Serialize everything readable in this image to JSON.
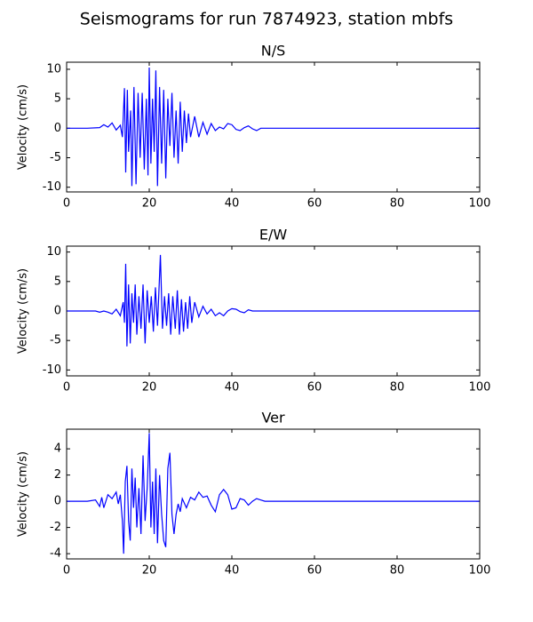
{
  "title": "Seismograms for run 7874923, station mbfs",
  "chart_data": [
    {
      "type": "line",
      "title": "N/S",
      "ylabel": "Velocity (cm/s)",
      "color": "#0000ff",
      "xlim": [
        0,
        100
      ],
      "xticks": [
        0,
        20,
        40,
        60,
        80,
        100
      ],
      "ylim": [
        -10.8,
        11.2
      ],
      "yticks": [
        -10,
        -5,
        0,
        5,
        10
      ],
      "x": [
        0,
        5,
        8,
        9,
        10,
        11,
        12,
        13,
        13.5,
        14,
        14.3,
        14.7,
        15,
        15.5,
        15.8,
        16.3,
        16.8,
        17.3,
        17.8,
        18.3,
        18.8,
        19.3,
        19.7,
        20,
        20.4,
        20.8,
        21.2,
        21.6,
        22,
        22.5,
        23,
        23.5,
        24,
        24.5,
        25,
        25.5,
        26,
        26.5,
        27,
        27.5,
        28,
        28.5,
        29,
        29.5,
        30,
        31,
        32,
        33,
        34,
        35,
        36,
        37,
        38,
        39,
        40,
        41,
        42,
        43,
        44,
        45,
        46,
        47,
        50,
        60,
        100
      ],
      "values": [
        0,
        0,
        0.1,
        0.6,
        0.2,
        0.9,
        -0.3,
        0.5,
        -1.5,
        6.8,
        -7.5,
        6.5,
        -4,
        3,
        -9.8,
        7,
        -9.5,
        6,
        -5,
        6,
        -7,
        5,
        -8,
        10.3,
        -6,
        5,
        -4,
        9.8,
        -9.8,
        7,
        -6,
        6.5,
        -8.5,
        5,
        -3,
        6,
        -5,
        3,
        -6,
        4.5,
        -4,
        3,
        -2.5,
        2.5,
        -1.5,
        2,
        -1.5,
        1,
        -1,
        0.8,
        -0.4,
        0.2,
        -0.1,
        0.8,
        0.6,
        -0.2,
        -0.4,
        0.1,
        0.4,
        -0.1,
        -0.4,
        0,
        0,
        0,
        0
      ]
    },
    {
      "type": "line",
      "title": "E/W",
      "ylabel": "Velocity (cm/s)",
      "color": "#0000ff",
      "xlim": [
        0,
        100
      ],
      "xticks": [
        0,
        20,
        40,
        60,
        80,
        100
      ],
      "ylim": [
        -11,
        11
      ],
      "yticks": [
        -10,
        -5,
        0,
        5,
        10
      ],
      "x": [
        0,
        7,
        8,
        9,
        10,
        11,
        12,
        13,
        13.7,
        14,
        14.3,
        14.6,
        15,
        15.4,
        15.8,
        16.2,
        16.6,
        17,
        17.5,
        18,
        18.5,
        19,
        19.5,
        20,
        20.5,
        21,
        21.5,
        22,
        22.7,
        23.2,
        23.7,
        24.2,
        24.7,
        25.2,
        25.7,
        26.3,
        26.8,
        27.3,
        27.8,
        28.3,
        28.8,
        29.3,
        29.8,
        30.3,
        31,
        32,
        33,
        34,
        35,
        36,
        37,
        38,
        39,
        40,
        41,
        42,
        43,
        44,
        45,
        47,
        100
      ],
      "values": [
        0,
        0,
        -0.2,
        0,
        -0.2,
        -0.5,
        0.3,
        -0.8,
        1.5,
        -2,
        8,
        -6,
        4.5,
        -5.5,
        3,
        -2,
        4.5,
        -4,
        2.5,
        -3,
        4.5,
        -5.5,
        3.5,
        -2,
        2.5,
        -3.5,
        4,
        -2.5,
        9.5,
        -3,
        2.5,
        -2.5,
        3,
        -4,
        2.5,
        -3,
        3.5,
        -4,
        2,
        -3.5,
        1.5,
        -3,
        2.5,
        -2,
        1.5,
        -1,
        0.8,
        -0.5,
        0.3,
        -0.8,
        -0.3,
        -0.8,
        0,
        0.4,
        0.3,
        -0.1,
        -0.3,
        0.2,
        0,
        0,
        0
      ]
    },
    {
      "type": "line",
      "title": "Ver",
      "ylabel": "Velocity (cm/s)",
      "color": "#0000ff",
      "xlim": [
        0,
        100
      ],
      "xticks": [
        0,
        20,
        40,
        60,
        80,
        100
      ],
      "ylim": [
        -4.4,
        5.5
      ],
      "yticks": [
        -4,
        -2,
        0,
        2,
        4
      ],
      "x": [
        0,
        5,
        7,
        8,
        8.5,
        9,
        10,
        11,
        12,
        12.5,
        13,
        13.5,
        13.8,
        14.2,
        14.6,
        15,
        15.4,
        15.8,
        16.2,
        16.6,
        17,
        17.5,
        18,
        18.5,
        19,
        19.5,
        20,
        20.4,
        20.8,
        21.2,
        21.6,
        22,
        22.5,
        23,
        23.5,
        24,
        24.5,
        25,
        25.5,
        26,
        26.5,
        27,
        27.5,
        28,
        29,
        30,
        31,
        32,
        33,
        34,
        35,
        36,
        37,
        38,
        39,
        40,
        41,
        42,
        43,
        44,
        45,
        46,
        47,
        48,
        50,
        100
      ],
      "values": [
        0,
        0,
        0.1,
        -0.4,
        0.3,
        -0.5,
        0.5,
        0.2,
        0.7,
        -0.2,
        0.5,
        -1.5,
        -4,
        1.5,
        2.7,
        -1.5,
        -3,
        2.5,
        -0.5,
        1.8,
        -2,
        1,
        -2.5,
        3.5,
        -1.5,
        1,
        5.2,
        -2,
        1.5,
        -2.5,
        2.5,
        -3.2,
        2,
        -1,
        -3,
        -3.5,
        2.5,
        3.7,
        -1,
        -2.5,
        -1,
        -0.2,
        -0.8,
        0.2,
        -0.5,
        0.3,
        0.1,
        0.7,
        0.3,
        0.4,
        -0.3,
        -0.8,
        0.5,
        0.9,
        0.5,
        -0.6,
        -0.5,
        0.2,
        0.1,
        -0.3,
        0,
        0.2,
        0.1,
        0,
        0,
        0
      ]
    }
  ]
}
